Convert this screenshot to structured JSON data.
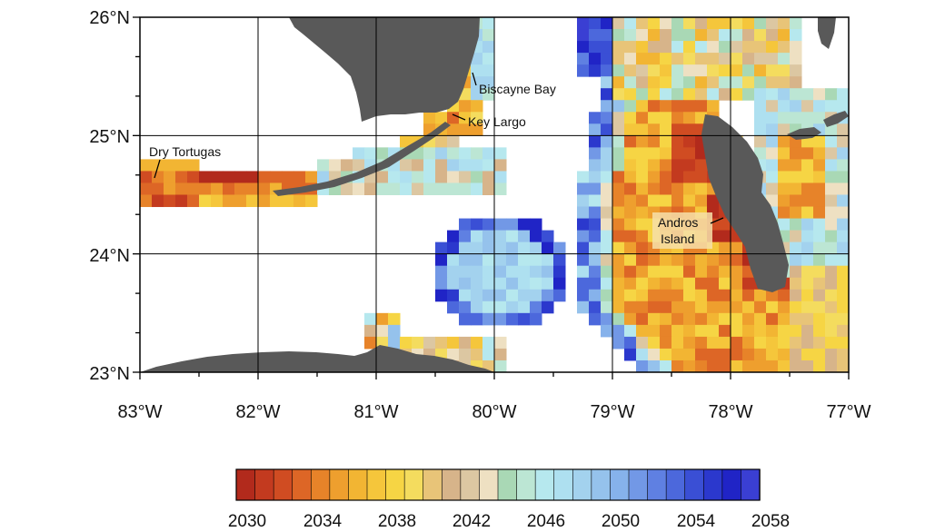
{
  "map": {
    "lat_ticks": [
      "26°N",
      "25°N",
      "24°N",
      "23°N"
    ],
    "lon_ticks": [
      "83°W",
      "82°W",
      "81°W",
      "80°W",
      "79°W",
      "78°W",
      "77°W"
    ],
    "extent": {
      "lon_min": -83,
      "lon_max": -77,
      "lat_min": 23,
      "lat_max": 26
    },
    "places": [
      {
        "id": "dry-tortugas",
        "name": "Dry Tortugas"
      },
      {
        "id": "biscayne-bay",
        "name": "Biscayne Bay"
      },
      {
        "id": "key-largo",
        "name": "Key Largo"
      },
      {
        "id": "andros-island-1",
        "name": "Andros"
      },
      {
        "id": "andros-island-2",
        "name": "Island"
      }
    ],
    "land_color": "#595959"
  },
  "colorbar": {
    "tick_labels": [
      "2030",
      "2034",
      "2038",
      "2042",
      "2046",
      "2050",
      "2054",
      "2058"
    ],
    "colors": [
      "#b22a1c",
      "#c33a1f",
      "#d04c22",
      "#dd6626",
      "#e78329",
      "#ee9f2e",
      "#f2b533",
      "#f5c63b",
      "#f6d544",
      "#f4dc5e",
      "#e8c478",
      "#d7b48a",
      "#dcc7a2",
      "#eee0c2",
      "#a9d8b5",
      "#bce6d4",
      "#b6e8ee",
      "#aee0f0",
      "#a3d2ee",
      "#95c2ec",
      "#86b2eb",
      "#7298e6",
      "#5f80e2",
      "#4c68dc",
      "#3a4fd5",
      "#2b38cd",
      "#2024c6",
      "#3a3fd3"
    ],
    "start_year": 2030,
    "step_years": 1
  }
}
